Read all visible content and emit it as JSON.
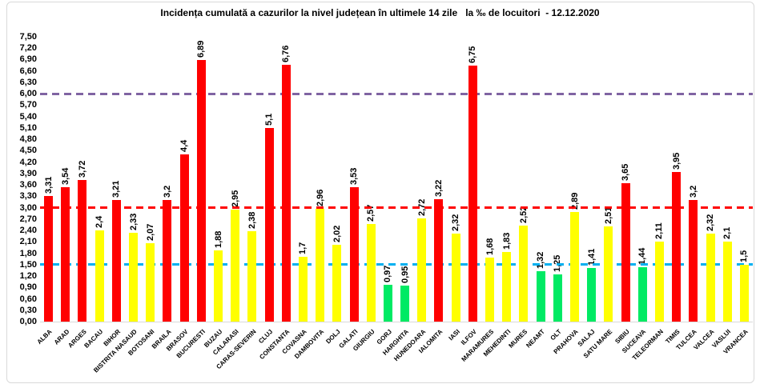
{
  "title": "Incidența cumulată a cazurilor la nivel județean în ultimele 14 zile   la ‰ de locuitori  - 12.12.2020",
  "chart_data": {
    "type": "bar",
    "title": "Incidența cumulată a cazurilor la nivel județean în ultimele 14 zile   la ‰ de locuitori  - 12.12.2020",
    "xlabel": "",
    "ylabel": "",
    "ylim": [
      0,
      7.5
    ],
    "ytick_step": 0.3,
    "ytick_labels": [
      "0,00",
      "0,30",
      "0,60",
      "0,90",
      "1,20",
      "1,50",
      "1,80",
      "2,10",
      "2,40",
      "2,70",
      "3,00",
      "3,30",
      "3,60",
      "3,90",
      "4,20",
      "4,50",
      "4,80",
      "5,10",
      "5,40",
      "5,70",
      "6,00",
      "6,30",
      "6,60",
      "6,90",
      "7,20",
      "7,50"
    ],
    "grid": false,
    "legend": false,
    "categories": [
      "ALBA",
      "ARAD",
      "ARGES",
      "BACAU",
      "BIHOR",
      "BISTRITA NASAUD",
      "BOTOSANI",
      "BRAILA",
      "BRASOV",
      "BUCURESTI",
      "BUZAU",
      "CALARASI",
      "CARAS-SEVERIN",
      "CLUJ",
      "CONSTANTA",
      "COVASNA",
      "DAMBOVITA",
      "DOLJ",
      "GALATI",
      "GIURGIU",
      "GORJ",
      "HARGHITA",
      "HUNEDOARA",
      "IALOMITA",
      "IASI",
      "ILFOV",
      "MARAMURES",
      "MEHEDINTI",
      "MURES",
      "NEAMT",
      "OLT",
      "PRAHOVA",
      "SALAJ",
      "SATU MARE",
      "SIBIU",
      "SUCEAVA",
      "TELEORMAN",
      "TIMIS",
      "TULCEA",
      "VALCEA",
      "VASLUI",
      "VRANCEA"
    ],
    "values": [
      3.31,
      3.54,
      3.72,
      2.4,
      3.21,
      2.33,
      2.07,
      3.2,
      4.4,
      6.89,
      1.88,
      2.95,
      2.38,
      5.1,
      6.76,
      1.7,
      2.96,
      2.02,
      3.53,
      2.57,
      0.97,
      0.95,
      2.72,
      3.22,
      2.32,
      6.75,
      1.68,
      1.83,
      2.52,
      1.32,
      1.25,
      2.89,
      1.41,
      2.51,
      3.65,
      1.44,
      2.11,
      3.95,
      3.2,
      2.32,
      2.1,
      1.5
    ],
    "value_labels": [
      "3,31",
      "3,54",
      "3,72",
      "2,4",
      "3,21",
      "2,33",
      "2,07",
      "3,2",
      "4,4",
      "6,89",
      "1,88",
      "2,95",
      "2,38",
      "5,1",
      "6,76",
      "1,7",
      "2,96",
      "2,02",
      "3,53",
      "2,57",
      "0,97",
      "0,95",
      "2,72",
      "3,22",
      "2,32",
      "6,75",
      "1,68",
      "1,83",
      "2,52",
      "1,32",
      "1,25",
      "2,89",
      "1,41",
      "2,51",
      "3,65",
      "1,44",
      "2,11",
      "3,95",
      "3,2",
      "2,32",
      "2,1",
      "1,5"
    ],
    "bar_colors": [
      "red",
      "red",
      "red",
      "yellow",
      "red",
      "yellow",
      "yellow",
      "red",
      "red",
      "red",
      "yellow",
      "yellow",
      "yellow",
      "red",
      "red",
      "yellow",
      "yellow",
      "yellow",
      "red",
      "yellow",
      "green",
      "green",
      "yellow",
      "red",
      "yellow",
      "red",
      "yellow",
      "yellow",
      "yellow",
      "green",
      "green",
      "yellow",
      "green",
      "yellow",
      "red",
      "green",
      "yellow",
      "red",
      "red",
      "yellow",
      "yellow",
      "yellow"
    ],
    "palette": {
      "red": "#FF0000",
      "yellow": "#FFFF00",
      "green": "#00EA64"
    },
    "thresholds": [
      {
        "value": 6.0,
        "color": "#8064A2"
      },
      {
        "value": 3.0,
        "color": "#FF0000"
      },
      {
        "value": 1.5,
        "color": "#00B0F0"
      }
    ]
  }
}
